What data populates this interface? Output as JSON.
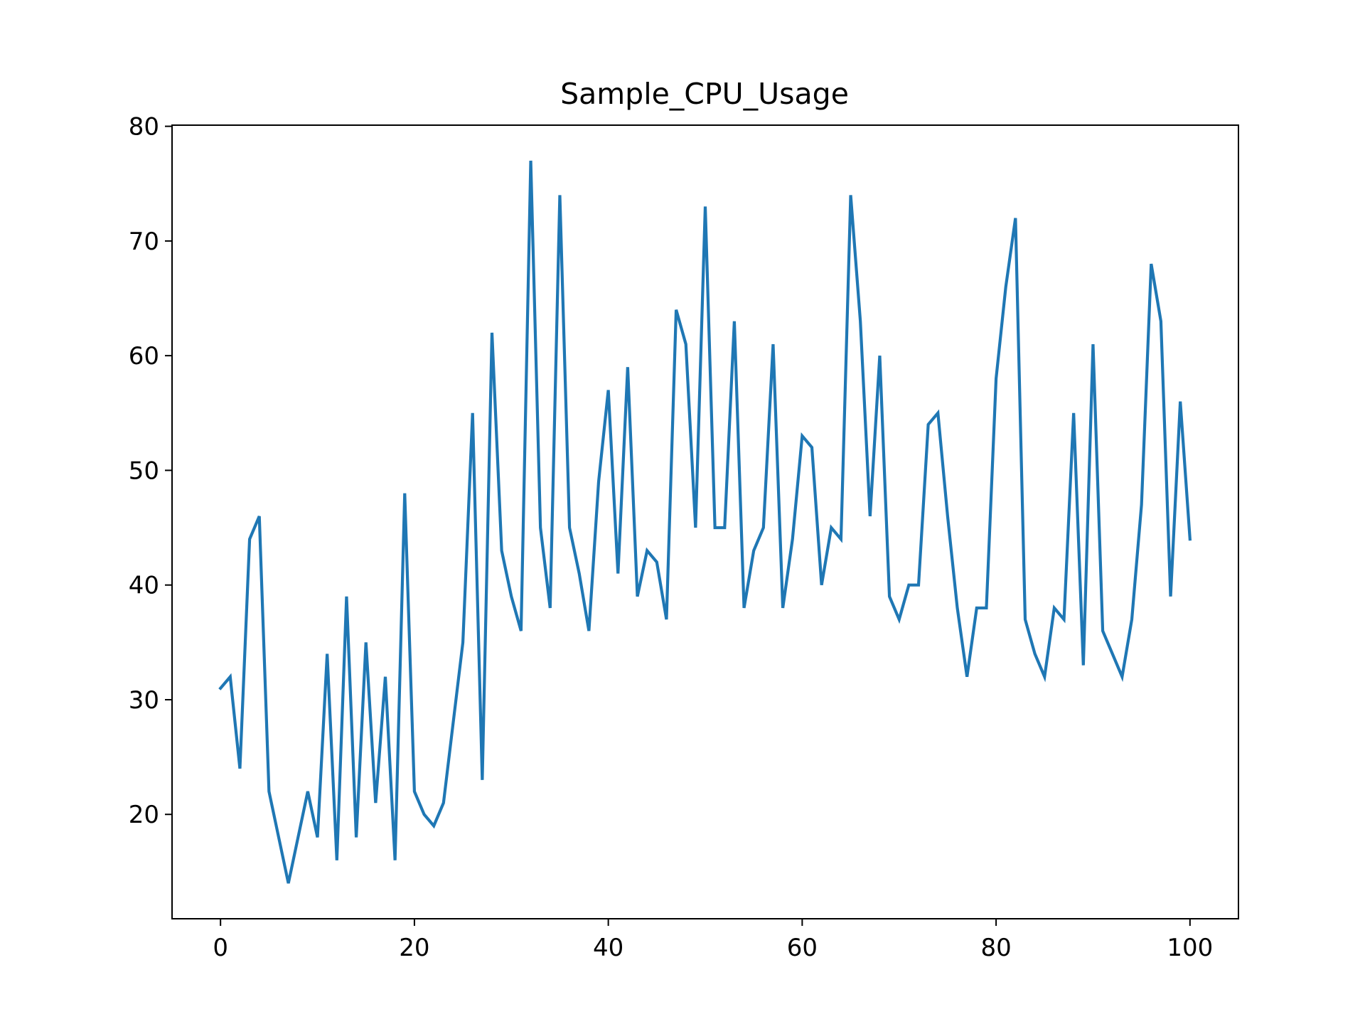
{
  "chart_data": {
    "type": "line",
    "title": "Sample_CPU_Usage",
    "xlabel": "",
    "ylabel": "",
    "xlim": [
      -5,
      105
    ],
    "ylim": [
      10.9,
      80.1
    ],
    "xticks": [
      0,
      20,
      40,
      60,
      80,
      100
    ],
    "yticks": [
      20,
      30,
      40,
      50,
      60,
      70,
      80
    ],
    "grid": false,
    "legend": "none",
    "series": [
      {
        "color": "#1f77b4",
        "x": [
          0,
          1,
          2,
          3,
          4,
          5,
          6,
          7,
          8,
          9,
          10,
          11,
          12,
          13,
          14,
          15,
          16,
          17,
          18,
          19,
          20,
          21,
          22,
          23,
          24,
          25,
          26,
          27,
          28,
          29,
          30,
          31,
          32,
          33,
          34,
          35,
          36,
          37,
          38,
          39,
          40,
          41,
          42,
          43,
          44,
          45,
          46,
          47,
          48,
          49,
          50,
          51,
          52,
          53,
          54,
          55,
          56,
          57,
          58,
          59,
          60,
          61,
          62,
          63,
          64,
          65,
          66,
          67,
          68,
          69,
          70,
          71,
          72,
          73,
          74,
          75,
          76,
          77,
          78,
          79,
          80,
          81,
          82,
          83,
          84,
          85,
          86,
          87,
          88,
          89,
          90,
          91,
          92,
          93,
          94,
          95,
          96,
          97,
          98,
          99,
          100
        ],
        "values": [
          31,
          32,
          24,
          44,
          46,
          22,
          18,
          14,
          18,
          22,
          18,
          34,
          16,
          39,
          18,
          35,
          21,
          32,
          16,
          48,
          22,
          20,
          19,
          21,
          28,
          35,
          55,
          23,
          62,
          43,
          39,
          36,
          77,
          45,
          38,
          74,
          45,
          41,
          36,
          49,
          57,
          41,
          59,
          39,
          43,
          42,
          37,
          64,
          61,
          45,
          73,
          45,
          45,
          63,
          38,
          43,
          45,
          61,
          38,
          44,
          53,
          52,
          40,
          45,
          44,
          74,
          63,
          46,
          60,
          39,
          37,
          40,
          40,
          54,
          55,
          46,
          38,
          32,
          38,
          38,
          58,
          66,
          72,
          37,
          34,
          32,
          38,
          37,
          55,
          33,
          61,
          36,
          34,
          32,
          37,
          47,
          68,
          63,
          39,
          56,
          44
        ]
      }
    ]
  }
}
